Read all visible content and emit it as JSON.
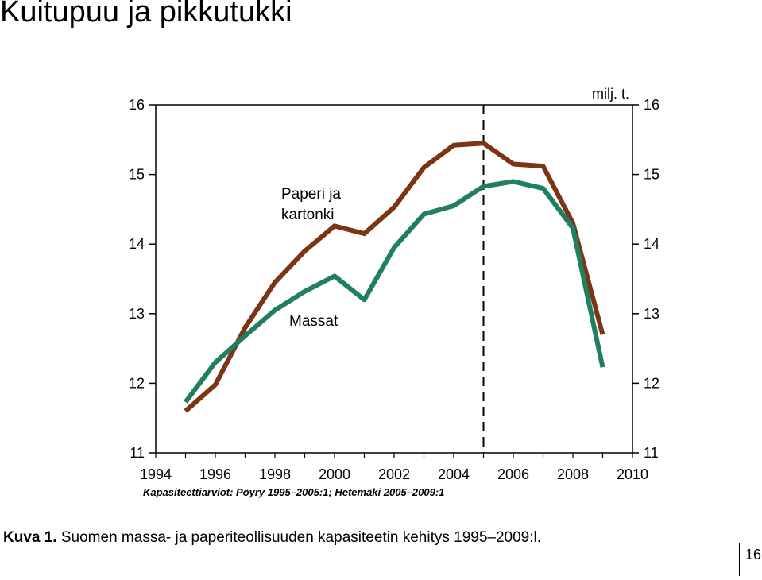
{
  "slide": {
    "title": "Kuitupuu ja pikkutukki",
    "page_number": "16"
  },
  "figure": {
    "unit_label": "milj. t.",
    "source_note": "Kapasiteettiarviot: Pöyry 1995–2005:1; Hetemäki 2005–2009:1",
    "caption_prefix": "Kuva 1.",
    "caption_text": " Suomen massa- ja paperiteollisuuden kapasiteetin kehitys 1995–2009:l."
  },
  "chart_data": {
    "type": "line",
    "title": "",
    "xlabel": "",
    "ylabel": "milj. t.",
    "xlim": [
      1994,
      2010
    ],
    "ylim": [
      11,
      16
    ],
    "x_ticks": [
      "1994",
      "1996",
      "1998",
      "2000",
      "2002",
      "2004",
      "2006",
      "2008",
      "2010"
    ],
    "y_ticks": [
      "11",
      "12",
      "13",
      "14",
      "15",
      "16"
    ],
    "y_axis_right": true,
    "grid": false,
    "vertical_reference_line": {
      "x": 2005,
      "style": "dashed"
    },
    "x": [
      1995,
      1996,
      1997,
      1998,
      1999,
      2000,
      2001,
      2002,
      2003,
      2004,
      2005,
      2006,
      2007,
      2008,
      2009
    ],
    "series": [
      {
        "name": "Paperi ja kartonki",
        "color": "#7a3514",
        "values": [
          11.6,
          11.98,
          12.8,
          13.45,
          13.9,
          14.26,
          14.15,
          14.53,
          15.1,
          15.42,
          15.45,
          15.15,
          15.12,
          14.3,
          12.7
        ]
      },
      {
        "name": "Massat",
        "color": "#1f7f5f",
        "values": [
          11.73,
          12.3,
          12.68,
          13.05,
          13.32,
          13.54,
          13.2,
          13.95,
          14.43,
          14.55,
          14.83,
          14.9,
          14.8,
          14.23,
          12.23
        ]
      }
    ]
  }
}
